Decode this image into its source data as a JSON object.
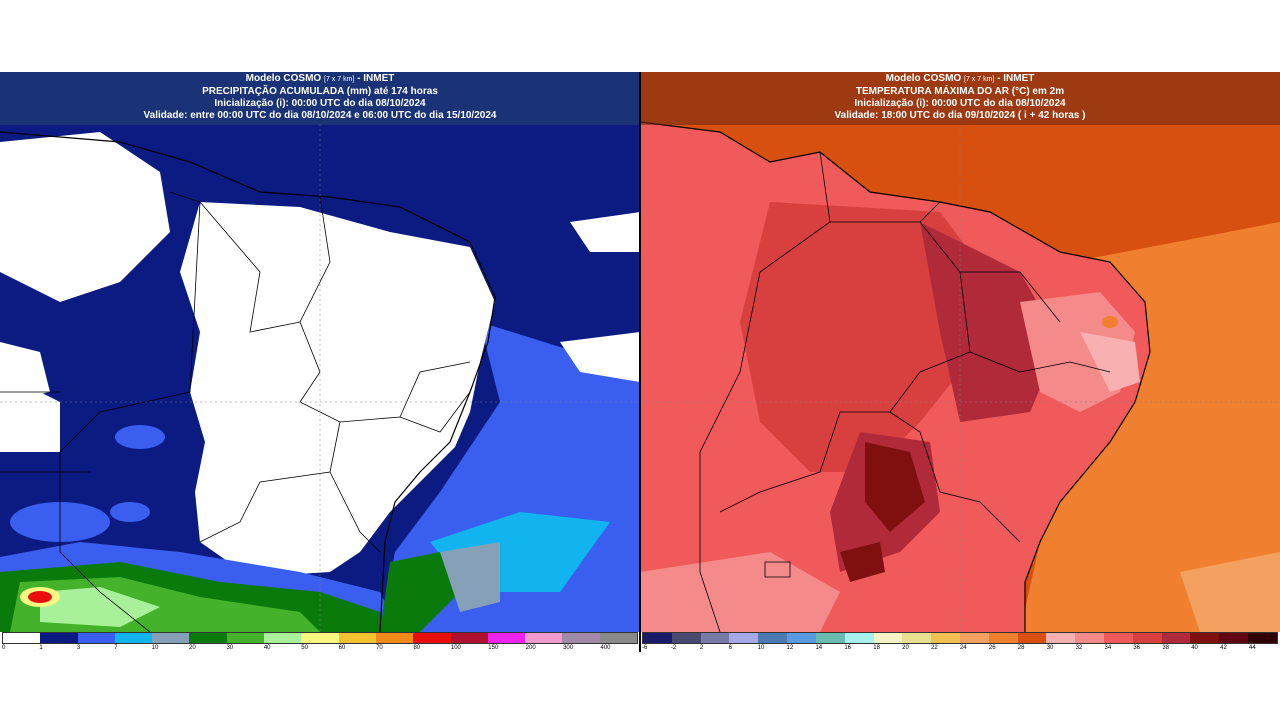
{
  "left": {
    "header": {
      "line1_a": "Modelo COSMO",
      "line1_small": "[7 x 7 km]",
      "line1_b": "- INMET",
      "line2": "PRECIPITAÇÃO ACUMULADA (mm) até 174 horas",
      "line3": "Inicialização (i): 00:00 UTC do dia 08/10/2024",
      "line4": "Validade: entre 00:00 UTC do dia 08/10/2024 e 06:00 UTC do dia 15/10/2024"
    },
    "colorbar": {
      "colors": [
        "#ffffff",
        "#0a1a80",
        "#3a5ef0",
        "#11b4ee",
        "#86a0b8",
        "#0a7a0a",
        "#44b22a",
        "#a8f09a",
        "#f8f880",
        "#f4c230",
        "#f08a1a",
        "#e80e0e",
        "#b01030",
        "#ee22ee",
        "#f29acb",
        "#a08aa8",
        "#8a8a8a"
      ],
      "labels": [
        "0",
        "1",
        "3",
        "7",
        "10",
        "20",
        "30",
        "40",
        "50",
        "60",
        "70",
        "80",
        "100",
        "150",
        "200",
        "300",
        "400"
      ]
    }
  },
  "right": {
    "header": {
      "line1_a": "Modelo COSMO",
      "line1_small": "[7 x 7 km]",
      "line1_b": "- INMET",
      "line2": "TEMPERATURA MÁXIMA DO AR (°C) em 2m",
      "line3": "Inicialização (i): 00:00 UTC do dia 08/10/2024",
      "line4": "Validade: 18:00 UTC do dia 09/10/2024 ( i + 42 horas )"
    },
    "colorbar": {
      "colors": [
        "#1a1a6a",
        "#4a4a70",
        "#7a7aa8",
        "#a8a8e8",
        "#4a7ab0",
        "#5a9ae0",
        "#6abab0",
        "#a8f0ee",
        "#f4f4c8",
        "#e8e090",
        "#f0c050",
        "#f4a060",
        "#f08030",
        "#d85010",
        "#f8b0b0",
        "#f48a8a",
        "#f05a5a",
        "#d84040",
        "#b02a3a",
        "#801010",
        "#600010",
        "#300008"
      ],
      "labels": [
        "-6",
        "-2",
        "2",
        "6",
        "10",
        "12",
        "14",
        "16",
        "18",
        "20",
        "22",
        "24",
        "26",
        "28",
        "30",
        "32",
        "34",
        "36",
        "38",
        "40",
        "42",
        "44"
      ]
    }
  }
}
